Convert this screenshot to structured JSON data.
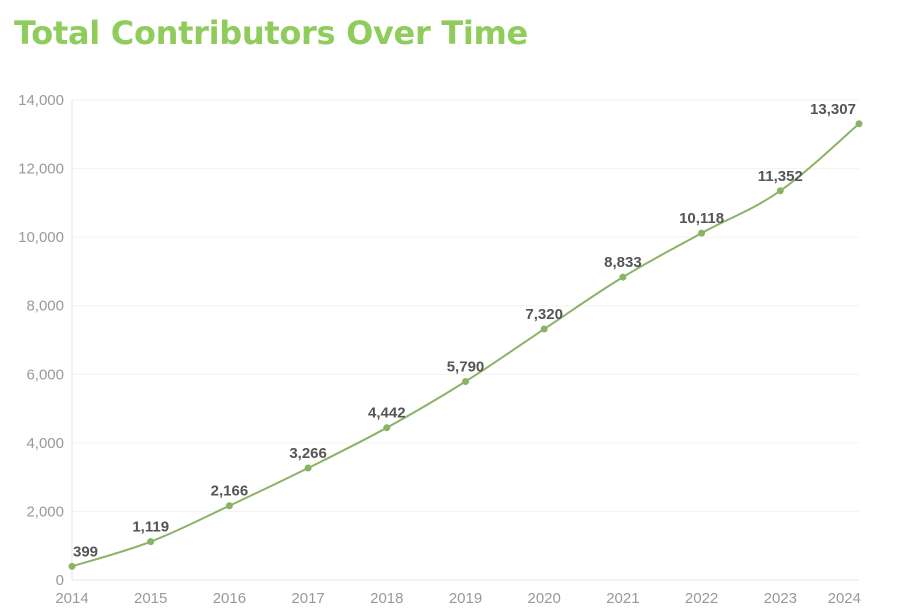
{
  "chart_data": {
    "type": "line",
    "title": "Total Contributors Over Time",
    "xlabel": "",
    "ylabel": "",
    "ylim": [
      0,
      14000
    ],
    "yticks": [
      "0",
      "2,000",
      "4,000",
      "6,000",
      "8,000",
      "10,000",
      "12,000",
      "14,000"
    ],
    "ytick_values": [
      0,
      2000,
      4000,
      6000,
      8000,
      10000,
      12000,
      14000
    ],
    "x": [
      2014,
      2015,
      2016,
      2017,
      2018,
      2019,
      2020,
      2021,
      2022,
      2023,
      2024
    ],
    "xtick_labels": [
      "2014",
      "2015",
      "2016",
      "2017",
      "2018",
      "2019",
      "2020",
      "2021",
      "2022",
      "2023",
      "2024"
    ],
    "series": [
      {
        "values": [
          399,
          1119,
          2166,
          3266,
          4442,
          5790,
          7320,
          8833,
          10118,
          11352,
          13307
        ],
        "labels": [
          "399",
          "1,119",
          "2,166",
          "3,266",
          "4,442",
          "5,790",
          "7,320",
          "8,833",
          "10,118",
          "11,352",
          "13,307"
        ]
      }
    ],
    "grid": true,
    "legend": "none",
    "colors": {
      "title": "#8fcc5c",
      "line": "#8ab366",
      "tick_text": "#999999",
      "data_label": "#555555"
    }
  }
}
